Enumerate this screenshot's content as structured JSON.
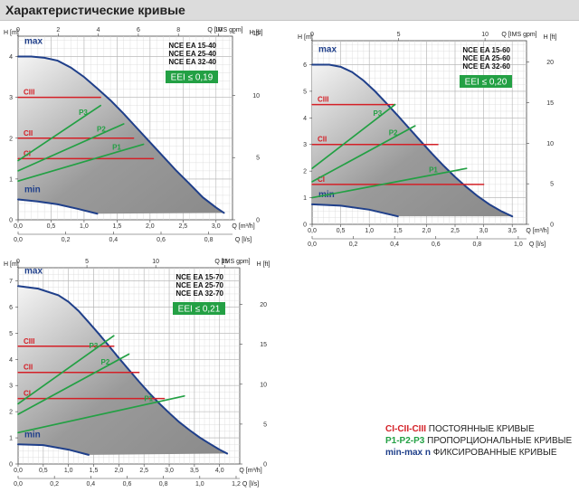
{
  "header": {
    "title": "Характеристические кривые"
  },
  "legend": {
    "rows": [
      {
        "key": "CI-CII-CIII",
        "text": "ПОСТОЯННЫЕ КРИВЫЕ",
        "color": "#d42027"
      },
      {
        "key": "P1-P2-P3",
        "text": "ПРОПОРЦИОНАЛЬНЫЕ КРИВЫЕ",
        "color": "#23a044"
      },
      {
        "key": "min-max n",
        "text": "ФИКСИРОВАННЫЕ КРИВЫЕ",
        "color": "#1f3f8a"
      }
    ]
  },
  "colors": {
    "red": "#d42027",
    "green": "#23a044",
    "blue": "#1f3f8a",
    "eei_bg": "#23a044"
  },
  "chart_data": [
    {
      "type": "line",
      "models": [
        "NCE EA 15-40",
        "NCE EA 25-40",
        "NCE EA 32-40"
      ],
      "eei": "EEI ≤ 0,19",
      "unit_h_m": "H [m]",
      "unit_h_ft": "H [ft]",
      "unit_q_m3h": "Q [m³/h]",
      "unit_q_ls": "Q [l/s]",
      "unit_q_gpm": "Q [IMS gpm]",
      "x_label": "Q [m³/h]",
      "y_label": "H [m]",
      "xlim": [
        0,
        3.25
      ],
      "ylim": [
        0,
        4.5
      ],
      "ticks_m3h": [
        "0,0",
        "0,5",
        "1,0",
        "1,5",
        "2,0",
        "2,5",
        "3,0"
      ],
      "ticks_m": [
        "0",
        "1",
        "2",
        "3",
        "4"
      ],
      "ticks_ls": [
        "0,0",
        "0,2",
        "0,4",
        "0,6",
        "0,8"
      ],
      "ticks_ft": [
        "0",
        "5",
        "10",
        "15"
      ],
      "ticks_gpm": [
        "0",
        "2",
        "4",
        "6",
        "8",
        "10"
      ],
      "series": [
        {
          "name": "max",
          "x": [
            0,
            0.2,
            0.4,
            0.6,
            0.8,
            1.0,
            1.2,
            1.4,
            1.6,
            1.8,
            2.0,
            2.2,
            2.4,
            2.6,
            2.8,
            3.0,
            3.12
          ],
          "y": [
            4.0,
            4.0,
            3.97,
            3.9,
            3.73,
            3.5,
            3.22,
            2.93,
            2.6,
            2.25,
            1.9,
            1.55,
            1.2,
            0.88,
            0.55,
            0.3,
            0.17
          ]
        },
        {
          "name": "min",
          "x": [
            0,
            0.3,
            0.6,
            0.9,
            1.2
          ],
          "y": [
            0.5,
            0.45,
            0.38,
            0.27,
            0.15
          ]
        },
        {
          "name": "CIII",
          "x": [
            0,
            1.25
          ],
          "y": [
            3.0,
            3.0
          ]
        },
        {
          "name": "CII",
          "x": [
            0,
            1.75
          ],
          "y": [
            2.0,
            2.0
          ]
        },
        {
          "name": "CI",
          "x": [
            0,
            2.05
          ],
          "y": [
            1.5,
            1.5
          ]
        },
        {
          "name": "P3",
          "x": [
            0,
            1.25
          ],
          "y": [
            1.45,
            2.8
          ]
        },
        {
          "name": "P2",
          "x": [
            0,
            1.6
          ],
          "y": [
            1.2,
            2.35
          ]
        },
        {
          "name": "P1",
          "x": [
            0,
            1.9
          ],
          "y": [
            0.95,
            1.85
          ]
        }
      ]
    },
    {
      "type": "line",
      "models": [
        "NCE EA 15-60",
        "NCE EA 25-60",
        "NCE EA 32-60"
      ],
      "eei": "EEI ≤ 0,20",
      "unit_h_m": "H [m]",
      "unit_h_ft": "H [ft]",
      "unit_q_m3h": "Q [m³/h]",
      "unit_q_ls": "Q [l/s]",
      "unit_q_gpm": "Q [IMS gpm]",
      "x_label": "Q [m³/h]",
      "y_label": "H [m]",
      "xlim": [
        0,
        3.75
      ],
      "ylim": [
        0,
        6.9
      ],
      "ticks_m3h": [
        "0,0",
        "0,5",
        "1,0",
        "1,5",
        "2,0",
        "2,5",
        "3,0",
        "3,5"
      ],
      "ticks_m": [
        "0",
        "1",
        "2",
        "3",
        "4",
        "5",
        "6"
      ],
      "ticks_ls": [
        "0,0",
        "0,2",
        "0,4",
        "0,6",
        "0,8",
        "1,0"
      ],
      "ticks_ft": [
        "0",
        "5",
        "10",
        "15",
        "20"
      ],
      "ticks_gpm": [
        "0",
        "5",
        "10"
      ],
      "series": [
        {
          "name": "max",
          "x": [
            0,
            0.3,
            0.5,
            0.7,
            0.9,
            1.1,
            1.3,
            1.5,
            1.7,
            1.9,
            2.1,
            2.3,
            2.5,
            2.7,
            2.9,
            3.1,
            3.3,
            3.5
          ],
          "y": [
            6.0,
            6.0,
            5.92,
            5.72,
            5.4,
            5.0,
            4.55,
            4.08,
            3.6,
            3.12,
            2.65,
            2.2,
            1.78,
            1.4,
            1.05,
            0.75,
            0.5,
            0.3
          ]
        },
        {
          "name": "min",
          "x": [
            0,
            0.5,
            1.0,
            1.5
          ],
          "y": [
            0.75,
            0.7,
            0.55,
            0.3
          ]
        },
        {
          "name": "CIII",
          "x": [
            0,
            1.45
          ],
          "y": [
            4.5,
            4.5
          ]
        },
        {
          "name": "CII",
          "x": [
            0,
            2.2
          ],
          "y": [
            3.0,
            3.0
          ]
        },
        {
          "name": "CI",
          "x": [
            0,
            3.0
          ],
          "y": [
            1.5,
            1.5
          ]
        },
        {
          "name": "P3",
          "x": [
            0,
            1.45
          ],
          "y": [
            2.1,
            4.5
          ]
        },
        {
          "name": "P2",
          "x": [
            0,
            1.8
          ],
          "y": [
            1.6,
            3.7
          ]
        },
        {
          "name": "P1",
          "x": [
            0,
            2.7
          ],
          "y": [
            1.0,
            2.1
          ]
        }
      ]
    },
    {
      "type": "line",
      "models": [
        "NCE EA 15-70",
        "NCE EA 25-70",
        "NCE EA 32-70"
      ],
      "eei": "EEI ≤ 0,21",
      "unit_h_m": "H [m]",
      "unit_h_ft": "H [ft]",
      "unit_q_m3h": "Q [m³/h]",
      "unit_q_ls": "Q [l/s]",
      "unit_q_gpm": "Q [IMS gpm]",
      "x_label": "Q [m³/h]",
      "y_label": "H [m]",
      "xlim": [
        0,
        4.4
      ],
      "ylim": [
        0,
        7.5
      ],
      "ticks_m3h": [
        "0,0",
        "0,5",
        "1,0",
        "1,5",
        "2,0",
        "2,5",
        "3,0",
        "3,5",
        "4,0"
      ],
      "ticks_m": [
        "0",
        "1",
        "2",
        "3",
        "4",
        "5",
        "6",
        "7"
      ],
      "ticks_ls": [
        "0,0",
        "0,2",
        "0,4",
        "0,6",
        "0,8",
        "1,0",
        "1,2"
      ],
      "ticks_ft": [
        "0",
        "5",
        "10",
        "15",
        "20"
      ],
      "ticks_gpm": [
        "0",
        "5",
        "10",
        "15"
      ],
      "series": [
        {
          "name": "max",
          "x": [
            0,
            0.4,
            0.8,
            1.0,
            1.2,
            1.4,
            1.6,
            1.8,
            2.0,
            2.2,
            2.4,
            2.6,
            2.8,
            3.0,
            3.2,
            3.4,
            3.6,
            3.8,
            4.0,
            4.15
          ],
          "y": [
            6.8,
            6.7,
            6.45,
            6.2,
            5.85,
            5.42,
            4.98,
            4.52,
            4.05,
            3.6,
            3.15,
            2.72,
            2.32,
            1.95,
            1.6,
            1.3,
            1.02,
            0.78,
            0.55,
            0.4
          ]
        },
        {
          "name": "min",
          "x": [
            0,
            0.5,
            1.0,
            1.4
          ],
          "y": [
            0.75,
            0.72,
            0.55,
            0.35
          ]
        },
        {
          "name": "CIII",
          "x": [
            0,
            1.9
          ],
          "y": [
            4.5,
            4.5
          ]
        },
        {
          "name": "CII",
          "x": [
            0,
            2.4
          ],
          "y": [
            3.5,
            3.5
          ]
        },
        {
          "name": "CI",
          "x": [
            0,
            2.9
          ],
          "y": [
            2.5,
            2.5
          ]
        },
        {
          "name": "P3",
          "x": [
            0,
            1.9
          ],
          "y": [
            2.3,
            4.9
          ]
        },
        {
          "name": "P2",
          "x": [
            0,
            2.2
          ],
          "y": [
            1.9,
            4.2
          ]
        },
        {
          "name": "P1",
          "x": [
            0,
            3.3
          ],
          "y": [
            1.2,
            2.6
          ]
        }
      ]
    }
  ]
}
